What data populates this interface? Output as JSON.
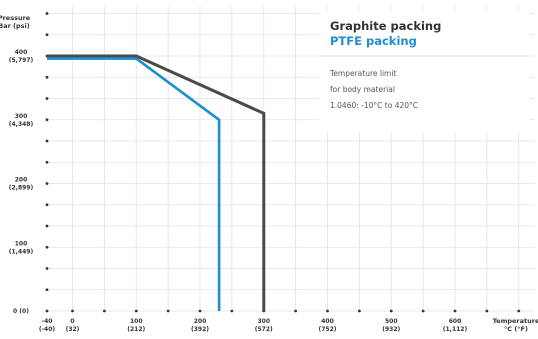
{
  "chart_data": {
    "type": "line",
    "ylabel": "Pressure Bar (psi)",
    "ylabel_lines": [
      "Pressure",
      "Bar (psi)"
    ],
    "xlabel": "Temperature °C (°F)",
    "xlabel_lines": [
      "Temperature",
      "°C (°F)"
    ],
    "xlim": [
      -40,
      600
    ],
    "ylim": [
      0,
      430
    ],
    "x_ticks": [
      {
        "value": -40,
        "label": "-40",
        "sub": "(-40)"
      },
      {
        "value": 0,
        "label": "0",
        "sub": "(32)"
      },
      {
        "value": 100,
        "label": "100",
        "sub": "(212)"
      },
      {
        "value": 200,
        "label": "200",
        "sub": "(392)"
      },
      {
        "value": 300,
        "label": "300",
        "sub": "(572)"
      },
      {
        "value": 400,
        "label": "400",
        "sub": "(752)"
      },
      {
        "value": 500,
        "label": "500",
        "sub": "(932)"
      },
      {
        "value": 600,
        "label": "600",
        "sub": "(1,112)"
      }
    ],
    "y_ticks": [
      {
        "value": 0,
        "label": "0 (0)",
        "sub": ""
      },
      {
        "value": 100,
        "label": "100",
        "sub": "(1,449)"
      },
      {
        "value": 200,
        "label": "200",
        "sub": "(2,899)"
      },
      {
        "value": 300,
        "label": "300",
        "sub": "(4,348)"
      },
      {
        "value": 400,
        "label": "400",
        "sub": "(5,797)"
      }
    ],
    "grid": true,
    "grid_minor_x_step": 50,
    "grid_minor_y_step": 33.33,
    "legend_position": "top-right",
    "series": [
      {
        "name": "Graphite packing",
        "color": "#4a4a4a",
        "x": [
          -40,
          100,
          300,
          300
        ],
        "y": [
          400,
          400,
          310,
          0
        ]
      },
      {
        "name": "PTFE packing",
        "color": "#1b8fd2",
        "x": [
          -40,
          100,
          230,
          230
        ],
        "y": [
          396,
          396,
          300,
          0
        ]
      }
    ],
    "annotation": [
      "Temperature limit",
      "for body material",
      "1.0460: -10°C to 420°C"
    ]
  }
}
